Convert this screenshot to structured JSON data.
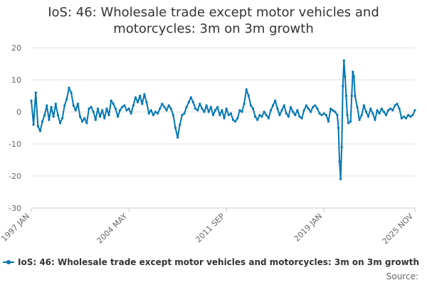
{
  "chart": {
    "title_line1": "IoS: 46: Wholesale trade except motor vehicles and",
    "title_line2": "motorcycles: 3m on 3m growth",
    "source_label": "Source:",
    "series_color": "#0076b6",
    "grid_color": "#e0e0e0"
  },
  "chart_data": {
    "type": "line",
    "title": "IoS: 46: Wholesale trade except motor vehicles and motorcycles: 3m on 3m growth",
    "xlabel": "",
    "ylabel": "",
    "ylim": [
      -30,
      20
    ],
    "yticks": [
      -30,
      -20,
      -10,
      0,
      10,
      20
    ],
    "xlim": [
      "1997-01",
      "2025-11"
    ],
    "xticks": [
      {
        "label": "1997 JAN",
        "x": "1997-01"
      },
      {
        "label": "2004 MAY",
        "x": "2004-05"
      },
      {
        "label": "2011 SEP",
        "x": "2011-09"
      },
      {
        "label": "2019 JAN",
        "x": "2019-01"
      },
      {
        "label": "2025 NOV",
        "x": "2025-11"
      }
    ],
    "grid": "horizontal",
    "legend": "bottom",
    "series": [
      {
        "name": "IoS: 46: Wholesale trade except motor vehicles and motorcycles: 3m on 3m growth",
        "points": [
          [
            "1997-01",
            3.5
          ],
          [
            "1997-03",
            -4.0
          ],
          [
            "1997-05",
            6.0
          ],
          [
            "1997-07",
            -4.5
          ],
          [
            "1997-09",
            -6.0
          ],
          [
            "1997-11",
            -3.0
          ],
          [
            "1998-01",
            -1.0
          ],
          [
            "1998-03",
            2.0
          ],
          [
            "1998-05",
            -2.5
          ],
          [
            "1998-07",
            1.5
          ],
          [
            "1998-09",
            -1.5
          ],
          [
            "1998-11",
            2.5
          ],
          [
            "1999-01",
            -1.0
          ],
          [
            "1999-03",
            -3.5
          ],
          [
            "1999-05",
            -2.0
          ],
          [
            "1999-07",
            2.0
          ],
          [
            "1999-09",
            4.0
          ],
          [
            "1999-11",
            7.5
          ],
          [
            "2000-01",
            6.0
          ],
          [
            "2000-03",
            2.0
          ],
          [
            "2000-05",
            0.5
          ],
          [
            "2000-07",
            2.5
          ],
          [
            "2000-09",
            -1.5
          ],
          [
            "2000-11",
            -3.0
          ],
          [
            "2001-01",
            -2.0
          ],
          [
            "2001-03",
            -3.5
          ],
          [
            "2001-05",
            1.0
          ],
          [
            "2001-07",
            1.5
          ],
          [
            "2001-09",
            0.0
          ],
          [
            "2001-11",
            -2.5
          ],
          [
            "2002-01",
            1.0
          ],
          [
            "2002-03",
            -1.5
          ],
          [
            "2002-05",
            0.5
          ],
          [
            "2002-07",
            -2.0
          ],
          [
            "2002-09",
            1.0
          ],
          [
            "2002-11",
            -1.0
          ],
          [
            "2003-01",
            3.5
          ],
          [
            "2003-03",
            2.5
          ],
          [
            "2003-05",
            1.0
          ],
          [
            "2003-07",
            -1.5
          ],
          [
            "2003-09",
            0.5
          ],
          [
            "2003-11",
            1.5
          ],
          [
            "2004-01",
            2.0
          ],
          [
            "2004-03",
            0.5
          ],
          [
            "2004-05",
            1.0
          ],
          [
            "2004-07",
            -0.5
          ],
          [
            "2004-09",
            2.0
          ],
          [
            "2004-11",
            4.5
          ],
          [
            "2005-01",
            3.0
          ],
          [
            "2005-03",
            5.0
          ],
          [
            "2005-05",
            2.5
          ],
          [
            "2005-07",
            5.5
          ],
          [
            "2005-09",
            3.0
          ],
          [
            "2005-11",
            -0.5
          ],
          [
            "2006-01",
            0.5
          ],
          [
            "2006-03",
            -1.0
          ],
          [
            "2006-05",
            0.0
          ],
          [
            "2006-07",
            -0.5
          ],
          [
            "2006-09",
            1.0
          ],
          [
            "2006-11",
            2.5
          ],
          [
            "2007-01",
            1.5
          ],
          [
            "2007-03",
            0.5
          ],
          [
            "2007-05",
            2.0
          ],
          [
            "2007-07",
            1.0
          ],
          [
            "2007-09",
            -1.0
          ],
          [
            "2007-11",
            -5.0
          ],
          [
            "2008-01",
            -8.0
          ],
          [
            "2008-03",
            -4.0
          ],
          [
            "2008-05",
            -1.0
          ],
          [
            "2008-07",
            -0.5
          ],
          [
            "2008-09",
            1.5
          ],
          [
            "2008-11",
            3.0
          ],
          [
            "2009-01",
            4.5
          ],
          [
            "2009-03",
            3.0
          ],
          [
            "2009-05",
            1.0
          ],
          [
            "2009-07",
            0.5
          ],
          [
            "2009-09",
            2.5
          ],
          [
            "2009-11",
            1.0
          ],
          [
            "2010-01",
            0.0
          ],
          [
            "2010-03",
            2.0
          ],
          [
            "2010-05",
            0.0
          ],
          [
            "2010-07",
            1.5
          ],
          [
            "2010-09",
            -1.0
          ],
          [
            "2010-11",
            0.5
          ],
          [
            "2011-01",
            1.5
          ],
          [
            "2011-03",
            -1.0
          ],
          [
            "2011-05",
            0.5
          ],
          [
            "2011-07",
            -2.0
          ],
          [
            "2011-09",
            1.0
          ],
          [
            "2011-11",
            -1.0
          ],
          [
            "2012-01",
            -0.5
          ],
          [
            "2012-03",
            -2.5
          ],
          [
            "2012-05",
            -3.0
          ],
          [
            "2012-07",
            -2.0
          ],
          [
            "2012-09",
            0.5
          ],
          [
            "2012-11",
            0.0
          ],
          [
            "2013-01",
            2.5
          ],
          [
            "2013-03",
            7.0
          ],
          [
            "2013-05",
            5.0
          ],
          [
            "2013-07",
            2.0
          ],
          [
            "2013-09",
            1.0
          ],
          [
            "2013-11",
            -1.5
          ],
          [
            "2014-01",
            -2.5
          ],
          [
            "2014-03",
            -1.0
          ],
          [
            "2014-05",
            -1.5
          ],
          [
            "2014-07",
            0.0
          ],
          [
            "2014-09",
            -1.0
          ],
          [
            "2014-11",
            -2.0
          ],
          [
            "2015-01",
            0.5
          ],
          [
            "2015-03",
            2.0
          ],
          [
            "2015-05",
            3.5
          ],
          [
            "2015-07",
            1.0
          ],
          [
            "2015-09",
            -1.0
          ],
          [
            "2015-11",
            0.5
          ],
          [
            "2016-01",
            2.0
          ],
          [
            "2016-03",
            -0.5
          ],
          [
            "2016-05",
            -1.5
          ],
          [
            "2016-07",
            1.5
          ],
          [
            "2016-09",
            0.0
          ],
          [
            "2016-11",
            -1.0
          ],
          [
            "2017-01",
            0.5
          ],
          [
            "2017-03",
            -1.5
          ],
          [
            "2017-05",
            -2.0
          ],
          [
            "2017-07",
            0.5
          ],
          [
            "2017-09",
            2.0
          ],
          [
            "2017-11",
            1.0
          ],
          [
            "2018-01",
            0.0
          ],
          [
            "2018-03",
            1.5
          ],
          [
            "2018-05",
            2.0
          ],
          [
            "2018-07",
            1.0
          ],
          [
            "2018-09",
            -0.5
          ],
          [
            "2018-11",
            -1.0
          ],
          [
            "2019-01",
            -0.5
          ],
          [
            "2019-03",
            -1.0
          ],
          [
            "2019-05",
            -3.0
          ],
          [
            "2019-07",
            1.0
          ],
          [
            "2019-09",
            0.5
          ],
          [
            "2019-11",
            0.0
          ],
          [
            "2020-01",
            -1.0
          ],
          [
            "2020-02",
            -5.0
          ],
          [
            "2020-03",
            -15.5
          ],
          [
            "2020-04",
            -21.0
          ],
          [
            "2020-05",
            -11.0
          ],
          [
            "2020-06",
            8.0
          ],
          [
            "2020-07",
            16.0
          ],
          [
            "2020-08",
            11.0
          ],
          [
            "2020-09",
            5.0
          ],
          [
            "2020-10",
            -1.0
          ],
          [
            "2020-11",
            -3.5
          ],
          [
            "2021-01",
            -3.0
          ],
          [
            "2021-02",
            5.0
          ],
          [
            "2021-03",
            12.5
          ],
          [
            "2021-04",
            11.0
          ],
          [
            "2021-05",
            5.0
          ],
          [
            "2021-07",
            1.5
          ],
          [
            "2021-09",
            -2.5
          ],
          [
            "2021-11",
            -1.0
          ],
          [
            "2022-01",
            2.0
          ],
          [
            "2022-03",
            0.0
          ],
          [
            "2022-05",
            -1.5
          ],
          [
            "2022-07",
            1.0
          ],
          [
            "2022-09",
            -0.5
          ],
          [
            "2022-11",
            -2.5
          ],
          [
            "2023-01",
            0.5
          ],
          [
            "2023-03",
            -0.5
          ],
          [
            "2023-05",
            1.0
          ],
          [
            "2023-07",
            0.0
          ],
          [
            "2023-09",
            -1.0
          ],
          [
            "2023-11",
            0.5
          ],
          [
            "2024-01",
            1.0
          ],
          [
            "2024-03",
            0.5
          ],
          [
            "2024-05",
            2.0
          ],
          [
            "2024-07",
            2.5
          ],
          [
            "2024-09",
            1.0
          ],
          [
            "2024-11",
            -2.0
          ],
          [
            "2025-01",
            -1.5
          ],
          [
            "2025-03",
            -2.0
          ],
          [
            "2025-05",
            -1.0
          ],
          [
            "2025-07",
            -1.5
          ],
          [
            "2025-09",
            -1.0
          ],
          [
            "2025-11",
            0.5
          ]
        ]
      }
    ]
  }
}
